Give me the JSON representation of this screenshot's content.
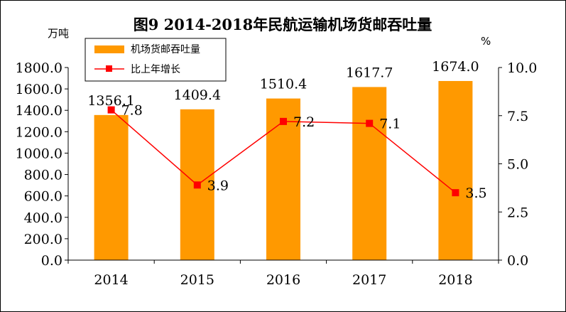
{
  "chart_data": {
    "type": "bar+line",
    "title": "图9 2014-2018年民航运输机场货邮吞吐量",
    "y_left_unit": "万吨",
    "y_right_unit": "%",
    "categories": [
      "2014",
      "2015",
      "2016",
      "2017",
      "2018"
    ],
    "series": [
      {
        "name": "机场货邮吞吐量",
        "type": "bar",
        "axis": "left",
        "color": "#FF9900",
        "values": [
          1356.1,
          1409.4,
          1510.4,
          1617.7,
          1674.0
        ],
        "labels": [
          "1356.1",
          "1409.4",
          "1510.4",
          "1617.7",
          "1674.0"
        ]
      },
      {
        "name": "比上年增长",
        "type": "line",
        "axis": "right",
        "color": "#FF0000",
        "marker_color": "#FF0000",
        "values": [
          7.8,
          3.9,
          7.2,
          7.1,
          3.5
        ],
        "labels": [
          "7.8",
          "3.9",
          "7.2",
          "7.1",
          "3.5"
        ]
      }
    ],
    "y_left": {
      "min": 0,
      "max": 1800,
      "ticks": [
        0,
        200,
        400,
        600,
        800,
        1000,
        1200,
        1400,
        1600,
        1800
      ],
      "tick_labels": [
        "0.0",
        "200.0",
        "400.0",
        "600.0",
        "800.0",
        "1000.0",
        "1200.0",
        "1400.0",
        "1600.0",
        "1800.0"
      ]
    },
    "y_right": {
      "min": 0,
      "max": 10,
      "ticks": [
        0,
        2.5,
        5,
        7.5,
        10
      ],
      "tick_labels": [
        "0.0",
        "2.5",
        "5.0",
        "7.5",
        "10.0"
      ]
    },
    "legend": {
      "position": "top-left"
    },
    "grid": false
  }
}
